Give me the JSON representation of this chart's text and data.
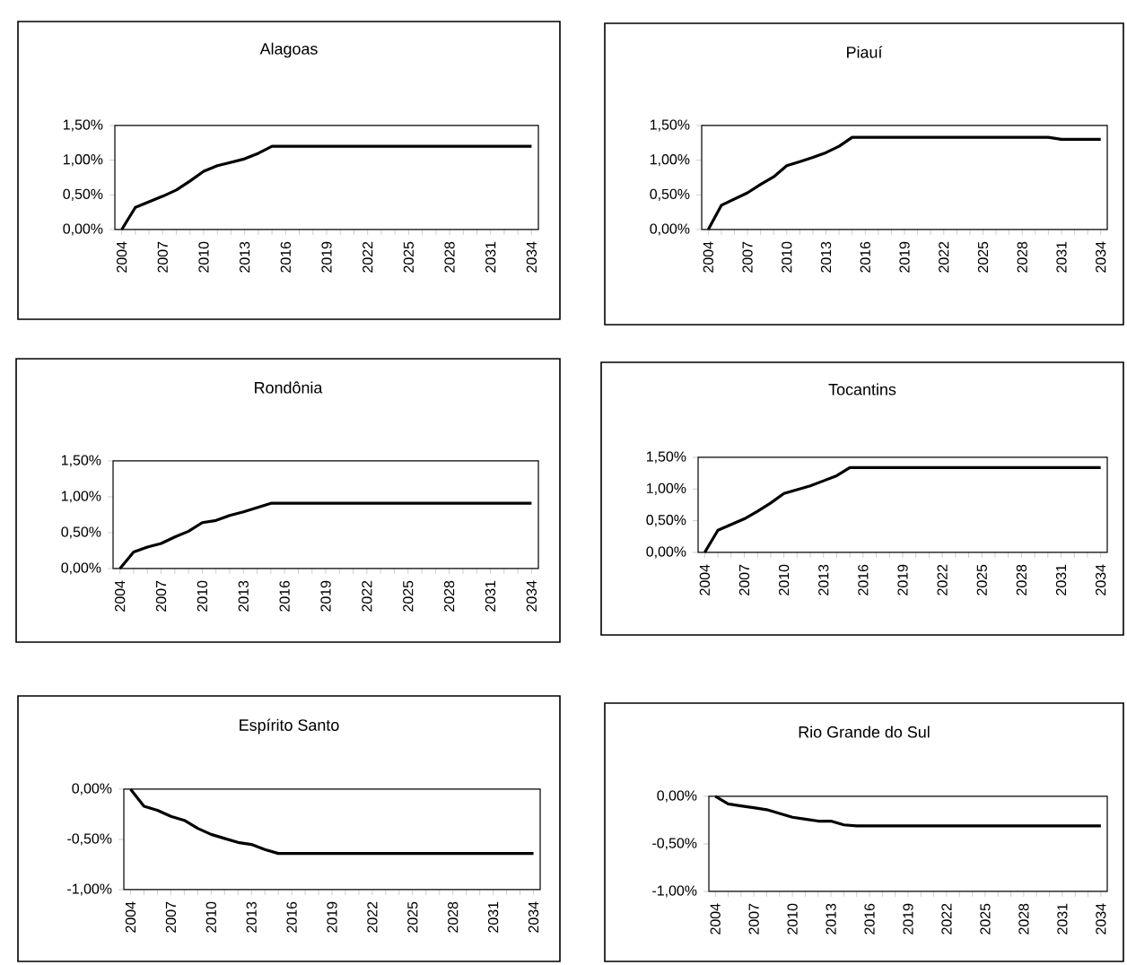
{
  "chart_data": [
    {
      "type": "line",
      "title": "Alagoas",
      "categories": [
        "2004",
        null,
        null,
        "2007",
        null,
        null,
        "2010",
        null,
        null,
        "2013",
        null,
        null,
        "2016",
        null,
        null,
        "2019",
        null,
        null,
        "2022",
        null,
        null,
        "2025",
        null,
        null,
        "2028",
        null,
        null,
        "2031",
        null,
        null,
        "2034"
      ],
      "color": "#000000",
      "values": [
        0,
        0.32,
        0.4,
        0.48,
        0.57,
        0.7,
        0.84,
        0.92,
        0.97,
        1.02,
        1.1,
        1.2,
        1.2,
        1.2,
        1.2,
        1.2,
        1.2,
        1.2,
        1.2,
        1.2,
        1.2,
        1.2,
        1.2,
        1.2,
        1.2,
        1.2,
        1.2,
        1.2,
        1.2,
        1.2,
        1.2
      ],
      "ylim": [
        0,
        1.5
      ],
      "yticks": [
        {
          "value": 0,
          "label": "0,00%"
        },
        {
          "value": 0.5,
          "label": "0,50%"
        },
        {
          "value": 1,
          "label": "1,00%"
        },
        {
          "value": 1.5,
          "label": "1,50%"
        }
      ]
    },
    {
      "type": "line",
      "title": "Piauí",
      "categories": [
        "2004",
        null,
        null,
        "2007",
        null,
        null,
        "2010",
        null,
        null,
        "2013",
        null,
        null,
        "2016",
        null,
        null,
        "2019",
        null,
        null,
        "2022",
        null,
        null,
        "2025",
        null,
        null,
        "2028",
        null,
        null,
        "2031",
        null,
        null,
        "2034"
      ],
      "color": "#000000",
      "values": [
        0,
        0.35,
        0.44,
        0.53,
        0.65,
        0.76,
        0.92,
        0.98,
        1.04,
        1.11,
        1.2,
        1.33,
        1.33,
        1.33,
        1.33,
        1.33,
        1.33,
        1.33,
        1.33,
        1.33,
        1.33,
        1.33,
        1.33,
        1.33,
        1.33,
        1.33,
        1.33,
        1.3,
        1.3,
        1.3,
        1.3
      ],
      "ylim": [
        0,
        1.5
      ],
      "yticks": [
        {
          "value": 0,
          "label": "0,00%"
        },
        {
          "value": 0.5,
          "label": "0,50%"
        },
        {
          "value": 1,
          "label": "1,00%"
        },
        {
          "value": 1.5,
          "label": "1,50%"
        }
      ]
    },
    {
      "type": "line",
      "title": "Rondônia",
      "categories": [
        "2004",
        null,
        null,
        "2007",
        null,
        null,
        "2010",
        null,
        null,
        "2013",
        null,
        null,
        "2016",
        null,
        null,
        "2019",
        null,
        null,
        "2022",
        null,
        null,
        "2025",
        null,
        null,
        "2028",
        null,
        null,
        "2031",
        null,
        null,
        "2034"
      ],
      "color": "#000000",
      "values": [
        0,
        0.23,
        0.3,
        0.35,
        0.44,
        0.52,
        0.64,
        0.67,
        0.74,
        0.79,
        0.85,
        0.91,
        0.91,
        0.91,
        0.91,
        0.91,
        0.91,
        0.91,
        0.91,
        0.91,
        0.91,
        0.91,
        0.91,
        0.91,
        0.91,
        0.91,
        0.91,
        0.91,
        0.91,
        0.91,
        0.91
      ],
      "ylim": [
        0,
        1.5
      ],
      "yticks": [
        {
          "value": 0,
          "label": "0,00%"
        },
        {
          "value": 0.5,
          "label": "0,50%"
        },
        {
          "value": 1,
          "label": "1,00%"
        },
        {
          "value": 1.5,
          "label": "1,50%"
        }
      ]
    },
    {
      "type": "line",
      "title": "Tocantins",
      "categories": [
        "2004",
        null,
        null,
        "2007",
        null,
        null,
        "2010",
        null,
        null,
        "2013",
        null,
        null,
        "2016",
        null,
        null,
        "2019",
        null,
        null,
        "2022",
        null,
        null,
        "2025",
        null,
        null,
        "2028",
        null,
        null,
        "2031",
        null,
        null,
        "2034"
      ],
      "color": "#000000",
      "values": [
        0,
        0.35,
        0.44,
        0.53,
        0.65,
        0.78,
        0.93,
        0.99,
        1.05,
        1.13,
        1.21,
        1.34,
        1.34,
        1.34,
        1.34,
        1.34,
        1.34,
        1.34,
        1.34,
        1.34,
        1.34,
        1.34,
        1.34,
        1.34,
        1.34,
        1.34,
        1.34,
        1.34,
        1.34,
        1.34,
        1.34
      ],
      "ylim": [
        0,
        1.5
      ],
      "yticks": [
        {
          "value": 0,
          "label": "0,00%"
        },
        {
          "value": 0.5,
          "label": "0,50%"
        },
        {
          "value": 1,
          "label": "1,00%"
        },
        {
          "value": 1.5,
          "label": "1,50%"
        }
      ]
    },
    {
      "type": "line",
      "title": "Espírito Santo",
      "categories": [
        "2004",
        null,
        null,
        "2007",
        null,
        null,
        "2010",
        null,
        null,
        "2013",
        null,
        null,
        "2016",
        null,
        null,
        "2019",
        null,
        null,
        "2022",
        null,
        null,
        "2025",
        null,
        null,
        "2028",
        null,
        null,
        "2031",
        null,
        null,
        "2034"
      ],
      "color": "#000000",
      "values": [
        0,
        -0.17,
        -0.21,
        -0.27,
        -0.31,
        -0.39,
        -0.45,
        -0.49,
        -0.53,
        -0.55,
        -0.6,
        -0.64,
        -0.64,
        -0.64,
        -0.64,
        -0.64,
        -0.64,
        -0.64,
        -0.64,
        -0.64,
        -0.64,
        -0.64,
        -0.64,
        -0.64,
        -0.64,
        -0.64,
        -0.64,
        -0.64,
        -0.64,
        -0.64,
        -0.64
      ],
      "ylim": [
        -1,
        0
      ],
      "yticks": [
        {
          "value": -1,
          "label": "-1,00%"
        },
        {
          "value": -0.5,
          "label": "-0,50%"
        },
        {
          "value": 0,
          "label": "0,00%"
        }
      ]
    },
    {
      "type": "line",
      "title": "Rio Grande do Sul",
      "categories": [
        "2004",
        null,
        null,
        "2007",
        null,
        null,
        "2010",
        null,
        null,
        "2013",
        null,
        null,
        "2016",
        null,
        null,
        "2019",
        null,
        null,
        "2022",
        null,
        null,
        "2025",
        null,
        null,
        "2028",
        null,
        null,
        "2031",
        null,
        null,
        "2034"
      ],
      "color": "#000000",
      "values": [
        0,
        -0.08,
        -0.1,
        -0.12,
        -0.14,
        -0.18,
        -0.22,
        -0.24,
        -0.26,
        -0.26,
        -0.3,
        -0.31,
        -0.31,
        -0.31,
        -0.31,
        -0.31,
        -0.31,
        -0.31,
        -0.31,
        -0.31,
        -0.31,
        -0.31,
        -0.31,
        -0.31,
        -0.31,
        -0.31,
        -0.31,
        -0.31,
        -0.31,
        -0.31,
        -0.31
      ],
      "ylim": [
        -1,
        0
      ],
      "yticks": [
        {
          "value": -1,
          "label": "-1,00%"
        },
        {
          "value": -0.5,
          "label": "-0,50%"
        },
        {
          "value": 0,
          "label": "0,00%"
        }
      ]
    }
  ]
}
